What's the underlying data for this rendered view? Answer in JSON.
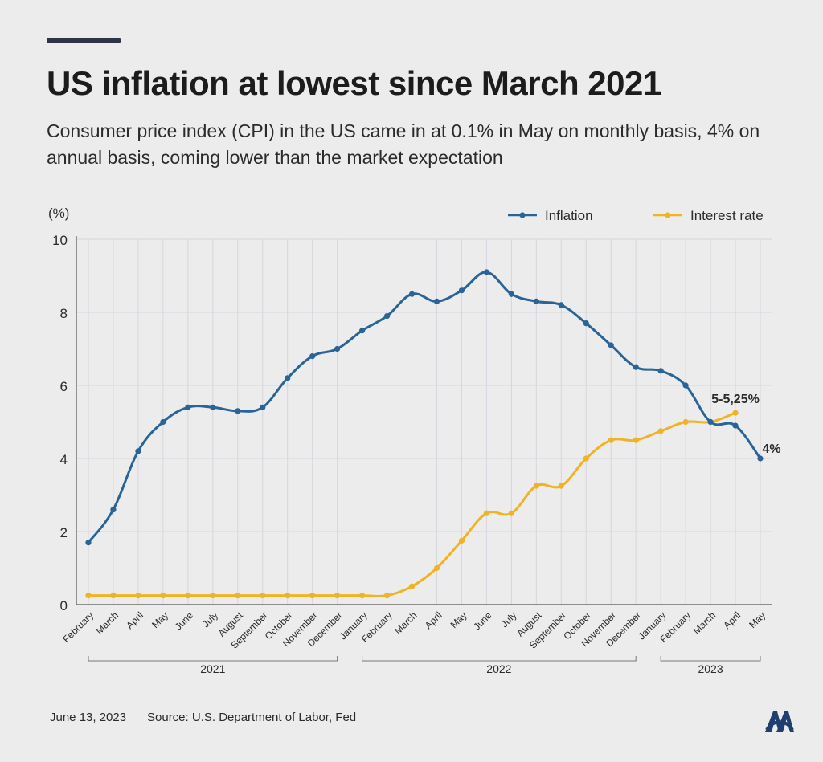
{
  "header": {
    "title": "US inflation at lowest since March 2021",
    "subtitle": "Consumer price index (CPI) in the US came in at 0.1% in May on monthly basis, 4% on annual basis, coming lower than the market expectation"
  },
  "footer": {
    "date": "June 13, 2023",
    "source": "Source: U.S. Department of Labor, Fed"
  },
  "logo": {
    "icon": "aa-logo-icon",
    "color": "#1f3f6e"
  },
  "chart_data": {
    "type": "line",
    "ylabel": "(%)",
    "ylim": [
      0,
      10
    ],
    "yticks": [
      0,
      2,
      4,
      6,
      8,
      10
    ],
    "grid": true,
    "legend_position": "top-right",
    "categories": [
      "February",
      "March",
      "April",
      "May",
      "June",
      "July",
      "August",
      "September",
      "October",
      "November",
      "December",
      "January",
      "February",
      "March",
      "April",
      "May",
      "June",
      "July",
      "August",
      "September",
      "October",
      "November",
      "December",
      "January",
      "February",
      "March",
      "April",
      "May"
    ],
    "year_groups": [
      {
        "label": "2021",
        "start": 0,
        "end": 10
      },
      {
        "label": "2022",
        "start": 11,
        "end": 22
      },
      {
        "label": "2023",
        "start": 23,
        "end": 27
      }
    ],
    "series": [
      {
        "name": "Inflation",
        "color": "#2a6496",
        "values": [
          1.7,
          2.6,
          4.2,
          5.0,
          5.4,
          5.4,
          5.3,
          5.4,
          6.2,
          6.8,
          7.0,
          7.5,
          7.9,
          8.5,
          8.3,
          8.6,
          9.1,
          8.5,
          8.3,
          8.2,
          7.7,
          7.1,
          6.5,
          6.4,
          6.0,
          5.0,
          4.9,
          4.0
        ]
      },
      {
        "name": "Interest rate",
        "color": "#f0b323",
        "values": [
          0.25,
          0.25,
          0.25,
          0.25,
          0.25,
          0.25,
          0.25,
          0.25,
          0.25,
          0.25,
          0.25,
          0.25,
          0.25,
          0.5,
          1.0,
          1.75,
          2.5,
          2.5,
          3.25,
          3.25,
          4.0,
          4.5,
          4.5,
          4.75,
          5.0,
          5.0,
          5.25,
          null
        ]
      }
    ],
    "annotations": [
      {
        "text": "5-5,25%",
        "series": 1,
        "index": 26
      },
      {
        "text": "4%",
        "series": 0,
        "index": 27
      }
    ]
  }
}
